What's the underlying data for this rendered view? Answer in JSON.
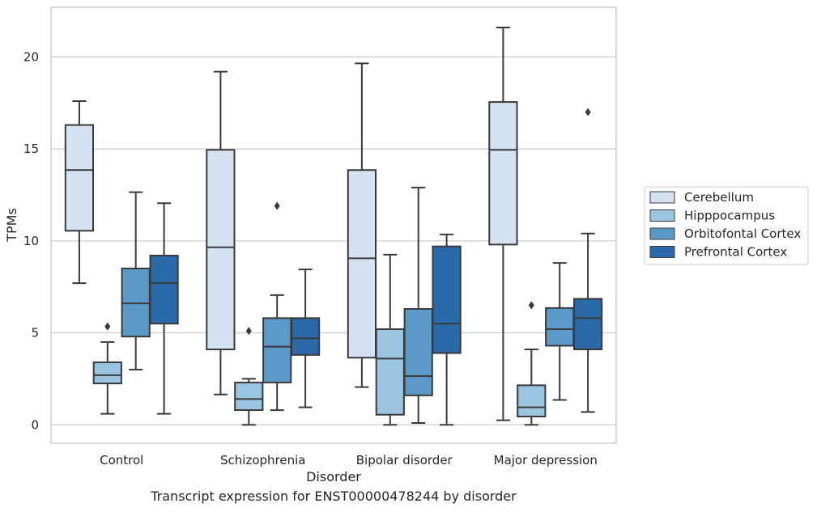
{
  "chart_data": {
    "type": "boxplot",
    "caption": "Transcript expression for ENST00000478244 by disorder",
    "xlabel": "Disorder",
    "ylabel": "TPMs",
    "ylim": [
      -1,
      22.7
    ],
    "yticks": [
      0,
      5,
      10,
      15,
      20
    ],
    "grid": "horizontal",
    "legend_position": "right",
    "categories": [
      "Control",
      "Schizophrenia",
      "Bipolar disorder",
      "Major depression"
    ],
    "series": [
      {
        "name": "Cerebellum",
        "color": "#d4e3f2",
        "boxes": [
          {
            "whislo": 7.7,
            "q1": 10.55,
            "med": 13.85,
            "q3": 16.3,
            "whishi": 17.6,
            "fliers": []
          },
          {
            "whislo": 1.65,
            "q1": 4.1,
            "med": 9.65,
            "q3": 14.95,
            "whishi": 19.2,
            "fliers": []
          },
          {
            "whislo": 2.05,
            "q1": 3.65,
            "med": 9.05,
            "q3": 13.85,
            "whishi": 19.65,
            "fliers": []
          },
          {
            "whislo": 0.25,
            "q1": 9.8,
            "med": 14.95,
            "q3": 17.55,
            "whishi": 21.6,
            "fliers": []
          }
        ]
      },
      {
        "name": "Hipppocampus",
        "color": "#9ac4e0",
        "boxes": [
          {
            "whislo": 0.6,
            "q1": 2.25,
            "med": 2.7,
            "q3": 3.4,
            "whishi": 4.5,
            "fliers": [
              5.35
            ]
          },
          {
            "whislo": 0.0,
            "q1": 0.8,
            "med": 1.4,
            "q3": 2.3,
            "whishi": 2.5,
            "fliers": [
              5.1
            ]
          },
          {
            "whislo": 0.0,
            "q1": 0.55,
            "med": 3.6,
            "q3": 5.2,
            "whishi": 9.25,
            "fliers": []
          },
          {
            "whislo": 0.0,
            "q1": 0.45,
            "med": 0.95,
            "q3": 2.15,
            "whishi": 4.1,
            "fliers": [
              6.5
            ]
          }
        ]
      },
      {
        "name": "Orbitofontal Cortex",
        "color": "#5b9ac8",
        "boxes": [
          {
            "whislo": 3.0,
            "q1": 4.8,
            "med": 6.6,
            "q3": 8.5,
            "whishi": 12.65,
            "fliers": []
          },
          {
            "whislo": 0.8,
            "q1": 2.3,
            "med": 4.25,
            "q3": 5.8,
            "whishi": 7.05,
            "fliers": [
              11.9
            ]
          },
          {
            "whislo": 0.1,
            "q1": 1.6,
            "med": 2.65,
            "q3": 6.3,
            "whishi": 12.9,
            "fliers": []
          },
          {
            "whislo": 1.35,
            "q1": 4.3,
            "med": 5.2,
            "q3": 6.35,
            "whishi": 8.8,
            "fliers": []
          }
        ]
      },
      {
        "name": "Prefrontal Cortex",
        "color": "#2b6aa9",
        "boxes": [
          {
            "whislo": 0.6,
            "q1": 5.5,
            "med": 7.7,
            "q3": 9.2,
            "whishi": 12.05,
            "fliers": []
          },
          {
            "whislo": 0.95,
            "q1": 3.8,
            "med": 4.7,
            "q3": 5.8,
            "whishi": 8.45,
            "fliers": []
          },
          {
            "whislo": 0.0,
            "q1": 3.9,
            "med": 5.5,
            "q3": 9.7,
            "whishi": 10.35,
            "fliers": []
          },
          {
            "whislo": 0.7,
            "q1": 4.1,
            "med": 5.8,
            "q3": 6.85,
            "whishi": 10.4,
            "fliers": [
              17.0
            ]
          }
        ]
      }
    ]
  }
}
